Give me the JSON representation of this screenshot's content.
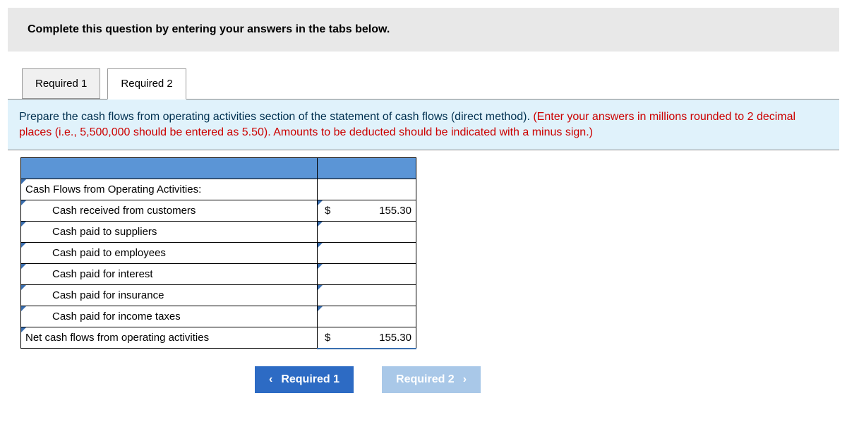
{
  "instruction": "Complete this question by entering your answers in the tabs below.",
  "tabs": {
    "t1": "Required 1",
    "t2": "Required 2"
  },
  "panel": {
    "black": "Prepare the cash flows from operating activities section of the statement of cash flows (direct method). ",
    "red": "(Enter your answers in millions rounded to 2 decimal places (i.e., 5,500,000 should be entered as 5.50). Amounts to be deducted should be indicated with a minus sign.)"
  },
  "sheet": {
    "section_header": "Cash Flows from Operating Activities:",
    "rows": [
      {
        "label": "Cash received from customers",
        "currency": "$",
        "value": "155.30"
      },
      {
        "label": "Cash paid to suppliers",
        "currency": "",
        "value": ""
      },
      {
        "label": "Cash paid to employees",
        "currency": "",
        "value": ""
      },
      {
        "label": "Cash paid for interest",
        "currency": "",
        "value": ""
      },
      {
        "label": "Cash paid for insurance",
        "currency": "",
        "value": ""
      },
      {
        "label": "Cash paid for income taxes",
        "currency": "",
        "value": ""
      }
    ],
    "total": {
      "label": "Net cash flows from operating activities",
      "currency": "$",
      "value": "155.30"
    }
  },
  "nav": {
    "prev": "Required 1",
    "next": "Required 2"
  },
  "colors": {
    "header_blue": "#5b95d6",
    "panel_bg": "#e0f2fb",
    "btn_primary": "#2d6bc4",
    "btn_disabled": "#a9c8e8",
    "red": "#cc0000"
  }
}
